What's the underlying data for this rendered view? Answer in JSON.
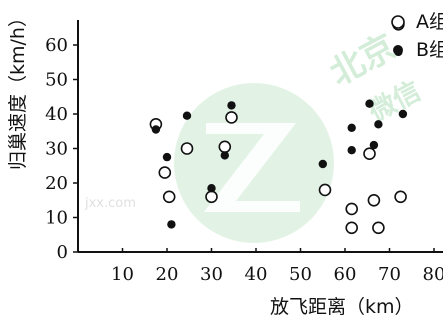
{
  "chart_data": {
    "type": "scatter",
    "xlabel": "放飞距离（km）",
    "ylabel": "归巢速度（km/h）",
    "xlim": [
      0,
      80
    ],
    "ylim": [
      0,
      65
    ],
    "xticks": [
      10,
      20,
      30,
      40,
      50,
      60,
      70,
      80
    ],
    "yticks": [
      0,
      10,
      20,
      30,
      40,
      50,
      60
    ],
    "legend_placement": "top-right",
    "series": [
      {
        "name": "A组",
        "marker": "hollow-circle",
        "color": "#111111",
        "x": [
          17.5,
          19.5,
          20.5,
          24.5,
          30.0,
          33.0,
          34.5,
          55.5,
          61.5,
          61.5,
          65.5,
          66.5,
          67.5,
          72.0,
          72.5
        ],
        "y": [
          37,
          23,
          16,
          30,
          16,
          30.5,
          39,
          18,
          12.5,
          7,
          28.5,
          15,
          7,
          66,
          16
        ]
      },
      {
        "name": "B组",
        "marker": "filled-circle",
        "color": "#111111",
        "x": [
          17.5,
          20.0,
          21.0,
          24.5,
          30.0,
          33.0,
          34.5,
          55.0,
          61.5,
          61.5,
          65.5,
          66.5,
          67.5,
          72.0,
          73.0
        ],
        "y": [
          35.5,
          27.5,
          8,
          39.5,
          18.5,
          28,
          42.5,
          25.5,
          36,
          29.5,
          43,
          31,
          37,
          58,
          40
        ]
      }
    ]
  },
  "watermark": {
    "brand": "北京",
    "sub": "微信",
    "url": "jxx.com"
  }
}
